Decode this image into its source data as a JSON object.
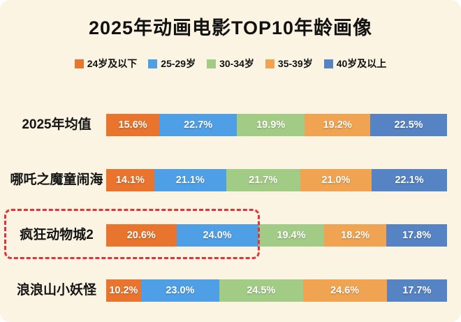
{
  "chart_data": {
    "type": "bar",
    "subtype": "horizontal-stacked",
    "title": "2025年动画电影TOP10年龄画像",
    "value_format": "percent",
    "legend_position": "top",
    "grid": false,
    "legend": [
      {
        "label": "24岁及以下",
        "color": "#E8742D"
      },
      {
        "label": "25-29岁",
        "color": "#4F9FE6"
      },
      {
        "label": "30-34岁",
        "color": "#A2CC85"
      },
      {
        "label": "35-39岁",
        "color": "#F0A351"
      },
      {
        "label": "40岁及以上",
        "color": "#5583C4"
      }
    ],
    "categories": [
      "2025年均值",
      "哪吒之魔童闹海",
      "疯狂动物城2",
      "浪浪山小妖怪"
    ],
    "series": [
      {
        "name": "24岁及以下",
        "values": [
          15.6,
          14.1,
          20.6,
          10.2
        ]
      },
      {
        "name": "25-29岁",
        "values": [
          22.7,
          21.1,
          24.0,
          23.0
        ]
      },
      {
        "name": "30-34岁",
        "values": [
          19.9,
          21.7,
          19.4,
          24.5
        ]
      },
      {
        "name": "35-39岁",
        "values": [
          19.2,
          21.0,
          18.2,
          24.6
        ]
      },
      {
        "name": "40岁及以上",
        "values": [
          22.5,
          22.1,
          17.8,
          17.7
        ]
      }
    ],
    "highlighted_category": "疯狂动物城2",
    "highlight_color": "#E43238"
  }
}
